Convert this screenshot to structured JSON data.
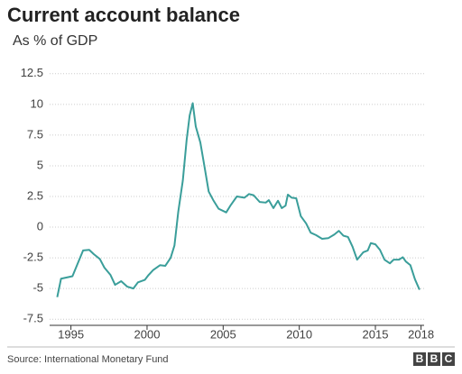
{
  "chart_data": {
    "type": "line",
    "title": "Current account balance",
    "subtitle": "As % of GDP",
    "source": "Source: International Monetary Fund",
    "logo": [
      "B",
      "B",
      "C"
    ],
    "color": "#3a9e9a",
    "grid": true,
    "x": [
      1994.1,
      1994.35,
      1995.1,
      1995.5,
      1995.8,
      1996.2,
      1996.5,
      1996.9,
      1997.2,
      1997.6,
      1997.9,
      1998.3,
      1998.7,
      1999.1,
      1999.4,
      1999.85,
      2000.1,
      2000.4,
      2000.85,
      2001.2,
      2001.55,
      2001.8,
      2002.05,
      2002.35,
      2002.6,
      2002.8,
      2003.0,
      2003.2,
      2003.5,
      2003.75,
      2004.05,
      2004.35,
      2004.7,
      2005.2,
      2005.5,
      2005.9,
      2006.4,
      2006.7,
      2007.0,
      2007.4,
      2007.8,
      2008.0,
      2008.3,
      2008.6,
      2008.85,
      2009.1,
      2009.25,
      2009.5,
      2009.8,
      2010.1,
      2010.45,
      2010.75,
      2011.1,
      2011.5,
      2011.9,
      2012.3,
      2012.6,
      2012.9,
      2013.2,
      2013.5,
      2013.8,
      2014.2,
      2014.5,
      2014.7,
      2015.0,
      2015.3,
      2015.6,
      2015.95,
      2016.2,
      2016.55,
      2016.8,
      2017.0,
      2017.3,
      2017.6,
      2017.9
    ],
    "values": [
      -5.7,
      -4.2,
      -4.0,
      -2.8,
      -1.9,
      -1.85,
      -2.2,
      -2.6,
      -3.3,
      -3.9,
      -4.7,
      -4.4,
      -4.85,
      -5.0,
      -4.5,
      -4.3,
      -3.9,
      -3.5,
      -3.1,
      -3.15,
      -2.5,
      -1.5,
      1.25,
      3.8,
      7.1,
      9.1,
      10.1,
      8.2,
      6.9,
      5.1,
      2.9,
      2.2,
      1.5,
      1.2,
      1.8,
      2.5,
      2.4,
      2.7,
      2.6,
      2.05,
      2.0,
      2.2,
      1.55,
      2.15,
      1.55,
      1.75,
      2.65,
      2.4,
      2.35,
      0.9,
      0.3,
      -0.45,
      -0.65,
      -0.95,
      -0.9,
      -0.6,
      -0.3,
      -0.7,
      -0.8,
      -1.6,
      -2.65,
      -2.05,
      -1.9,
      -1.3,
      -1.4,
      -1.85,
      -2.65,
      -2.95,
      -2.65,
      -2.65,
      -2.45,
      -2.8,
      -3.1,
      -4.25,
      -5.1
    ],
    "xlim": [
      1993.6,
      2018.2
    ],
    "xticks": [
      1995,
      2000,
      2005,
      2010,
      2015,
      2018
    ],
    "ylim": [
      -8,
      13
    ],
    "yticks": [
      -7.5,
      -5,
      -2.5,
      0,
      2.5,
      5,
      7.5,
      10,
      12.5
    ]
  }
}
